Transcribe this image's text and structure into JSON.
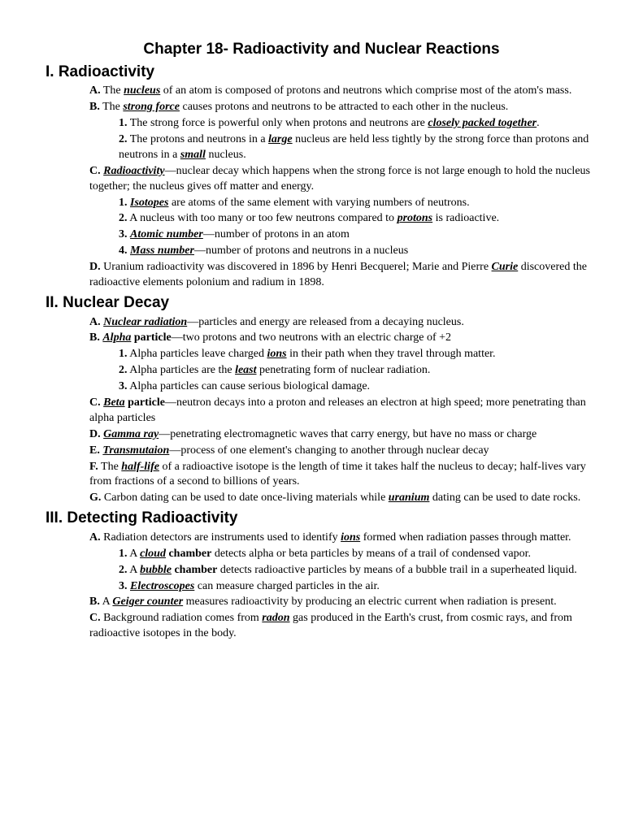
{
  "title": "Chapter 18- Radioactivity and Nuclear Reactions",
  "s1": {
    "title": "I. Radioactivity",
    "A1": "A.",
    "A2": " The ",
    "A3": "nucleus",
    "A4": " of an atom is composed of protons and neutrons which comprise most of the atom's mass.",
    "B1": "B.",
    "B2": " The ",
    "B3": "strong force",
    "B4": " causes protons and neutrons to be attracted to each other in the nucleus.",
    "B1_1": "1.",
    "B1_2": " The strong force is powerful only when protons and neutrons are ",
    "B1_3": "closely packed together",
    "B1_4": ".",
    "B2_1": "2.",
    "B2_2": " The protons and neutrons in a ",
    "B2_3": "large",
    "B2_4": " nucleus are held less tightly by the strong force than protons and neutrons in a ",
    "B2_5": "small",
    "B2_6": " nucleus.",
    "C1": "C. ",
    "C2": "Radioactivity",
    "C3": "—nuclear decay which happens when the strong force is not large enough to hold the nucleus together; the nucleus gives off matter and energy.",
    "C1_1": "1. ",
    "C1_2": "Isotopes",
    "C1_3": " are atoms of the same element with varying numbers of neutrons.",
    "C2_1": "2.",
    "C2_2": " A nucleus with too many or too few neutrons compared to ",
    "C2_3": "protons",
    "C2_4": " is radioactive.",
    "C3_1": "3. ",
    "C3_2": "Atomic number",
    "C3_3": "—number of protons in an atom",
    "C4_1": "4. ",
    "C4_2": "Mass number",
    "C4_3": "—number of protons and neutrons in a nucleus",
    "D1": "D.",
    "D2": " Uranium radioactivity was discovered in 1896 by Henri Becquerel; Marie and Pierre ",
    "D3": "Curie",
    "D4": " discovered the radioactive elements polonium and radium in 1898."
  },
  "s2": {
    "title": "II. Nuclear Decay",
    "A1": "A. ",
    "A2": "Nuclear radiation",
    "A3": "—particles and energy are released from a decaying nucleus.",
    "B1": "B. ",
    "B2": "Alpha",
    "B3": " particle",
    "B4": "—two protons and two neutrons with an electric charge of +2",
    "B1_1": "1.",
    "B1_2": " Alpha particles leave charged ",
    "B1_3": "ions",
    "B1_4": " in their path when they travel through matter.",
    "B2_1": "2.",
    "B2_2": " Alpha particles are the ",
    "B2_3": "least",
    "B2_4": " penetrating form of nuclear radiation.",
    "B3_1": "3.",
    "B3_2": " Alpha particles can cause serious biological damage.",
    "C1": "C. ",
    "C2": "Beta",
    "C3": " particle",
    "C4": "—neutron decays into a proton and releases an electron at high speed; more penetrating than alpha particles",
    "D1": "D. ",
    "D2": "Gamma ray",
    "D3": "—penetrating electromagnetic waves that carry energy, but have no mass or charge",
    "E1": "E. ",
    "E2": "Transmutaion",
    "E3": "—process of one element's changing to another through nuclear decay",
    "F1": "F.",
    "F2": " The ",
    "F3": "half-life",
    "F4": " of a radioactive isotope is the length of time it takes half the nucleus to decay; half-lives vary from fractions of a second to billions of years.",
    "G1": "G.",
    "G2": " Carbon dating can be used to date once-living materials while ",
    "G3": "uranium",
    "G4": " dating can be used to date rocks."
  },
  "s3": {
    "title": "III. Detecting Radioactivity",
    "A1": "A.",
    "A2": " Radiation detectors are instruments used to identify ",
    "A3": "ions",
    "A4": " formed when radiation passes through matter.",
    "A1_1": "1.",
    "A1_2": " A ",
    "A1_3": "cloud",
    "A1_4": " chamber",
    "A1_5": " detects alpha or beta particles by means of a trail of condensed vapor.",
    "A2_1": "2.",
    "A2_2": " A ",
    "A2_3": "bubble",
    "A2_4": " chamber",
    "A2_5": " detects radioactive particles by means of a bubble trail in a superheated liquid.",
    "A3_1": "3. ",
    "A3_2": "Electroscopes",
    "A3_3": " can measure charged particles in the air.",
    "B1": "B.",
    "B2": " A ",
    "B3": "Geiger counter",
    "B4": " measures radioactivity by producing an electric current when radiation is present.",
    "C1": "C.",
    "C2": " Background radiation comes from ",
    "C3": "radon",
    "C4": " gas produced in the Earth's crust, from cosmic rays, and from radioactive isotopes in the body."
  }
}
